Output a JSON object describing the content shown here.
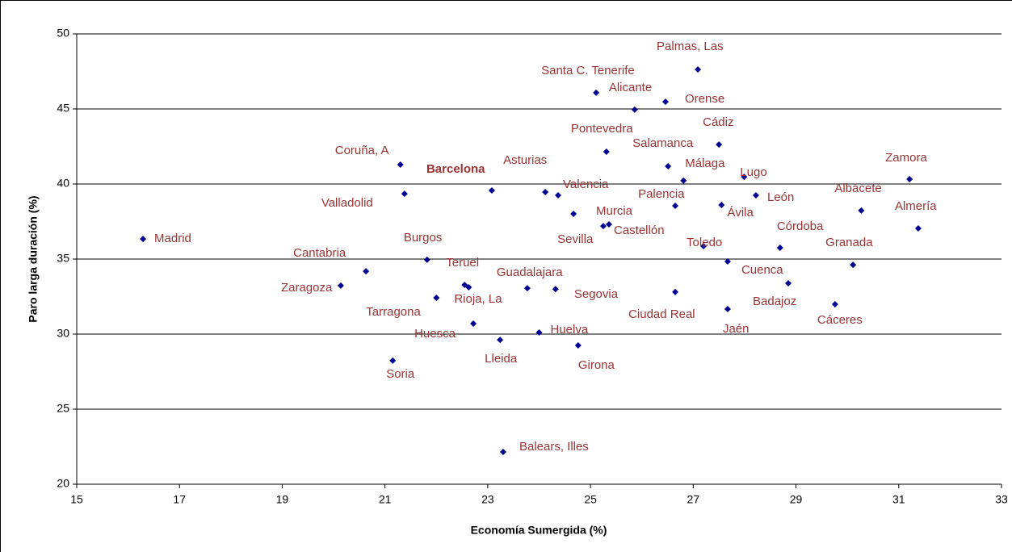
{
  "chart_data": {
    "type": "scatter",
    "xlabel": "Economía Sumergida (%)",
    "ylabel": "Paro larga duración (%)",
    "xlim": [
      15,
      33
    ],
    "xticks": [
      15,
      17,
      19,
      21,
      23,
      25,
      27,
      29,
      31,
      33
    ],
    "ylim": [
      20,
      50
    ],
    "yticks": [
      20,
      25,
      30,
      35,
      40,
      45,
      50
    ],
    "grid": true,
    "color": "#000090",
    "label_color": "#993333",
    "highlight": "Barcelona",
    "labels": [
      "Madrid",
      "Palmas, Las",
      "Santa C. Tenerife",
      "Alicante",
      "Orense",
      "Pontevedra",
      "Cádiz",
      "Salamanca",
      "Coruña, A",
      "Barcelona",
      "Asturias",
      "Valencia",
      "Málaga",
      "Lugo",
      "Zamora",
      "Valladolid",
      "León",
      "Albacete",
      "Almería",
      "Palencia",
      "Ávila",
      "Murcia",
      "Castellón",
      "Sevilla",
      "Córdoba",
      "Toledo",
      "Cuenca",
      "Granada",
      "Burgos",
      "Cantabria",
      "Zaragoza",
      "Teruel",
      "Rioja, La",
      "Guadalajara",
      "Segovia",
      "Ciudad Real",
      "Badajoz",
      "Cáceres",
      "Jaén",
      "Tarragona",
      "Huesca",
      "Lleida",
      "Huelva",
      "Girona",
      "Soria",
      "Balears, Illes"
    ],
    "x": [
      16.29,
      27.09,
      25.11,
      25.86,
      26.46,
      25.31,
      27.5,
      26.51,
      21.3,
      23.08,
      24.12,
      24.37,
      26.81,
      27.99,
      31.21,
      21.38,
      28.22,
      30.27,
      31.38,
      26.65,
      27.55,
      25.25,
      25.36,
      24.67,
      28.69,
      27.2,
      27.67,
      30.11,
      21.82,
      20.63,
      20.14,
      22.55,
      22.63,
      23.77,
      24.32,
      26.65,
      28.85,
      29.76,
      27.67,
      22.0,
      22.72,
      23.24,
      24.0,
      24.76,
      21.15,
      23.3
    ],
    "values": [
      36.34,
      47.63,
      46.08,
      44.95,
      45.48,
      42.15,
      42.63,
      41.18,
      41.29,
      39.57,
      39.46,
      39.25,
      40.22,
      40.48,
      40.32,
      39.35,
      39.25,
      38.23,
      37.04,
      38.55,
      38.6,
      37.2,
      37.31,
      38.01,
      35.75,
      35.86,
      34.84,
      34.62,
      34.95,
      34.19,
      33.23,
      33.28,
      33.12,
      33.06,
      33.0,
      32.8,
      33.39,
      31.99,
      31.67,
      32.42,
      30.7,
      29.62,
      30.11,
      29.25,
      28.23,
      22.15
    ]
  }
}
